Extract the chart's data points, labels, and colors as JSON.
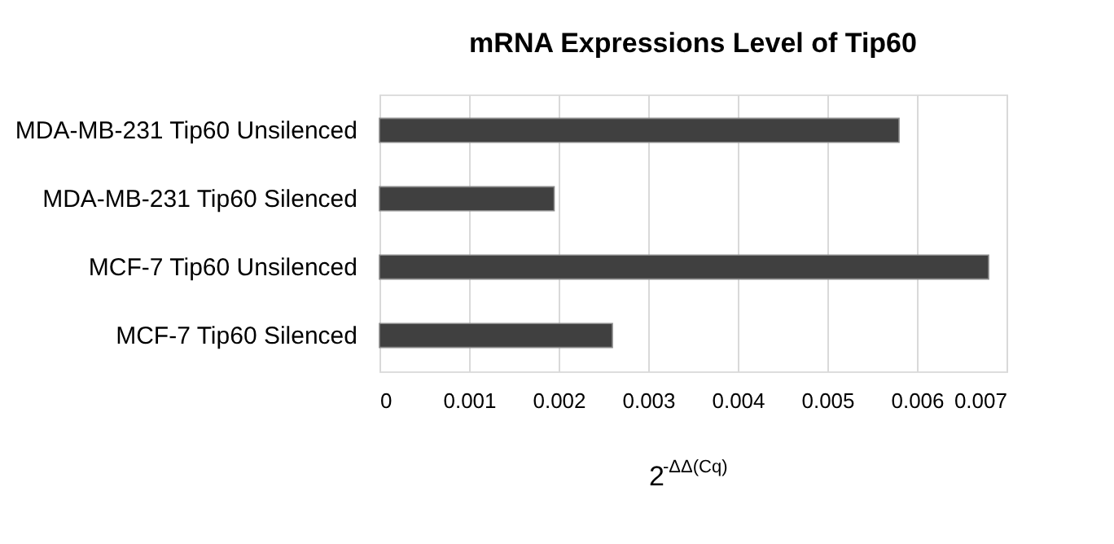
{
  "chart_data": {
    "type": "bar",
    "orientation": "horizontal",
    "title": "mRNA Expressions Level of Tip60",
    "xlabel": "2$^{-ΔΔ(Cq)}$",
    "categories": [
      "MDA-MB-231 Tip60 Unsilenced",
      "MDA-MB-231 Tip60 Silenced",
      "MCF-7 Tip60 Unsilenced",
      "MCF-7 Tip60 Silenced"
    ],
    "values": [
      0.0058,
      0.00195,
      0.0068,
      0.0026
    ],
    "color": "#404040",
    "xlim": [
      0,
      0.007
    ],
    "xticks": [
      0,
      0.001,
      0.002,
      0.003,
      0.004,
      0.005,
      0.006,
      0.007
    ],
    "grid": "x"
  }
}
